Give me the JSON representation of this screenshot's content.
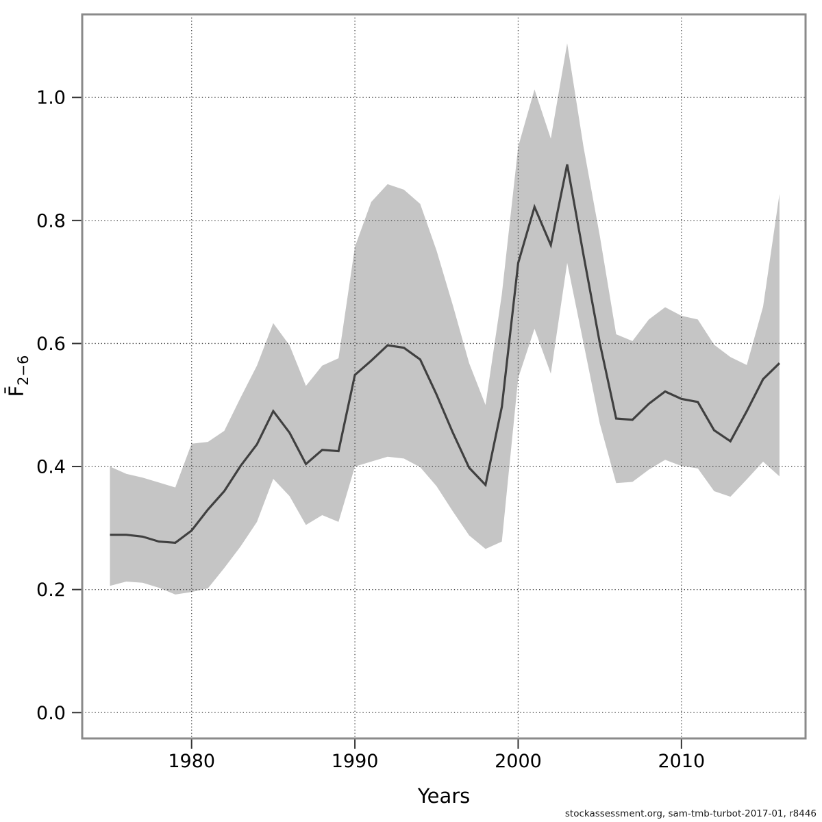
{
  "footer": {
    "credit": "stockassessment.org, sam-tmb-turbot-2017-01, r8446"
  },
  "chart_data": {
    "type": "line",
    "title": "",
    "xlabel": "Years",
    "ylabel": {
      "base": "F",
      "overbar": true,
      "subscript": "2−6"
    },
    "legend": "none",
    "grid": true,
    "x": [
      1975,
      1976,
      1977,
      1978,
      1979,
      1980,
      1981,
      1982,
      1983,
      1984,
      1985,
      1986,
      1987,
      1988,
      1989,
      1990,
      1991,
      1992,
      1993,
      1994,
      1995,
      1996,
      1997,
      1998,
      1999,
      2000,
      2001,
      2002,
      2003,
      2004,
      2005,
      2006,
      2007,
      2008,
      2009,
      2010,
      2011,
      2012,
      2013,
      2014,
      2015,
      2016
    ],
    "series": [
      {
        "name": "mean_F_estimate",
        "values": [
          0.289,
          0.289,
          0.286,
          0.278,
          0.276,
          0.296,
          0.33,
          0.36,
          0.401,
          0.436,
          0.49,
          0.455,
          0.404,
          0.427,
          0.425,
          0.549,
          0.572,
          0.597,
          0.593,
          0.574,
          0.517,
          0.455,
          0.398,
          0.37,
          0.497,
          0.731,
          0.822,
          0.76,
          0.891,
          0.744,
          0.601,
          0.478,
          0.476,
          0.502,
          0.522,
          0.51,
          0.505,
          0.459,
          0.441,
          0.49,
          0.542,
          0.568
        ]
      },
      {
        "name": "ci_lower",
        "values": [
          0.206,
          0.213,
          0.211,
          0.203,
          0.192,
          0.196,
          0.202,
          0.235,
          0.27,
          0.31,
          0.38,
          0.352,
          0.305,
          0.321,
          0.31,
          0.4,
          0.408,
          0.416,
          0.413,
          0.399,
          0.368,
          0.327,
          0.288,
          0.266,
          0.278,
          0.544,
          0.624,
          0.551,
          0.731,
          0.601,
          0.47,
          0.373,
          0.375,
          0.395,
          0.411,
          0.401,
          0.397,
          0.36,
          0.351,
          0.379,
          0.408,
          0.384
        ]
      },
      {
        "name": "ci_upper",
        "values": [
          0.4,
          0.388,
          0.382,
          0.374,
          0.366,
          0.437,
          0.44,
          0.458,
          0.512,
          0.564,
          0.633,
          0.597,
          0.531,
          0.564,
          0.576,
          0.757,
          0.83,
          0.859,
          0.85,
          0.827,
          0.751,
          0.662,
          0.568,
          0.5,
          0.68,
          0.92,
          1.013,
          0.933,
          1.088,
          0.92,
          0.775,
          0.615,
          0.604,
          0.639,
          0.659,
          0.645,
          0.639,
          0.598,
          0.578,
          0.565,
          0.66,
          0.843
        ]
      }
    ],
    "xticks": [
      1980,
      1990,
      2000,
      2010
    ],
    "ytick_values": [
      0.0,
      0.2,
      0.4,
      0.6,
      0.8,
      1.0
    ],
    "ytick_labels": [
      "0.0",
      "0.2",
      "0.4",
      "0.6",
      "0.8",
      "1.0"
    ],
    "xlim": [
      1973.3,
      2017.6
    ],
    "ylim": [
      -0.042,
      1.135
    ],
    "colors": {
      "band": "#c5c5c5",
      "line": "#404040",
      "frame": "#8a8a8a",
      "grid": "#4a4a4a",
      "tick": "#333333",
      "text": "#000000",
      "footer_text": "#1a1a1a"
    }
  }
}
